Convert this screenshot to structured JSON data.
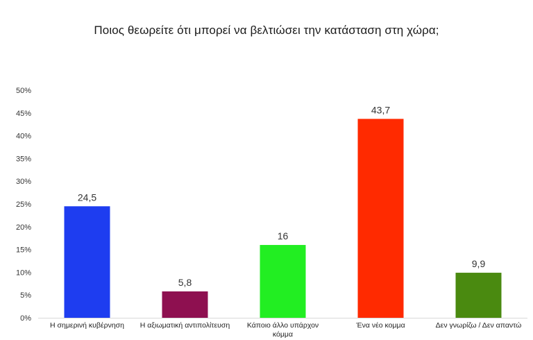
{
  "chart_data": {
    "type": "bar",
    "title": "Ποιος θεωρείτε ότι μπορεί να βελτιώσει την κατάσταση στη χώρα;",
    "xlabel": "",
    "ylabel": "",
    "ylim": [
      0,
      50
    ],
    "yticks": [
      "0%",
      "5%",
      "10%",
      "15%",
      "20%",
      "25%",
      "30%",
      "35%",
      "40%",
      "45%",
      "50%"
    ],
    "grid": false,
    "categories": [
      [
        "Η σημερινή κυβέρνηση"
      ],
      [
        "Η αξιωματική αντιπολίτευση"
      ],
      [
        "Κάποιο άλλο υπάρχον",
        "κόμμα"
      ],
      [
        "Ένα νέο κομμα"
      ],
      [
        "Δεν γνωρίζω / Δεν απαντώ"
      ]
    ],
    "values": [
      24.5,
      5.8,
      16,
      43.7,
      9.9
    ],
    "value_labels": [
      "24,5",
      "5,8",
      "16",
      "43,7",
      "9,9"
    ],
    "colors": [
      "#1e3df0",
      "#8e1050",
      "#22ee22",
      "#ff2a00",
      "#4a8a10"
    ]
  }
}
